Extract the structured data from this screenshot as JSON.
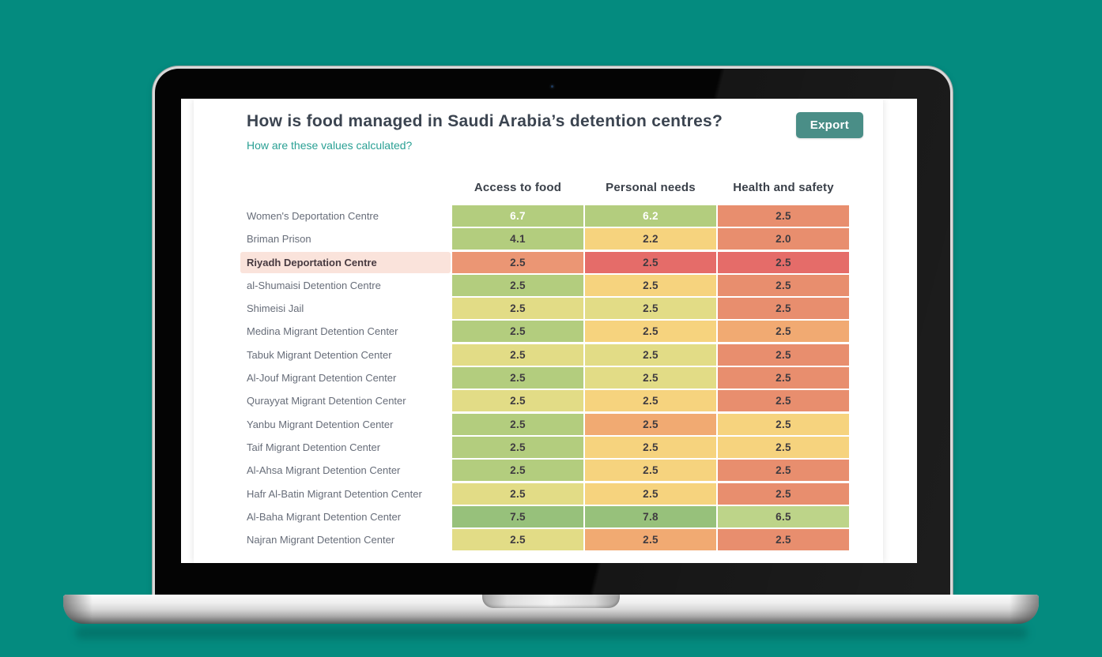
{
  "background_color": "#048b7f",
  "page": {
    "title": "How is food managed in Saudi Arabia’s detention centres?",
    "subtitle_link": "How are these values calculated?",
    "export_label": "Export"
  },
  "palette": {
    "green": "#b3cd7e",
    "green_dark": "#97c17b",
    "green_light": "#bdd489",
    "yellowgreen": "#e2dc86",
    "gold": "#f6d37e",
    "orange": "#f1aa72",
    "salmon": "#e88e6e",
    "salmon_orange": "#eb9674",
    "red": "#e56c69",
    "highlight_row_bg": "#fae3db",
    "accent_teal": "#2aa094",
    "export_bg": "#4a8e87",
    "title_color": "#3b4450",
    "label_color": "#676d79",
    "value_color": "#3f3b40"
  },
  "chart_data": {
    "type": "heatmap",
    "title": "How is food managed in Saudi Arabia’s detention centres?",
    "columns": [
      "Access to food",
      "Personal needs",
      "Health and safety"
    ],
    "color_scale": "red-yellow-green",
    "highlighted_row": "Riyadh Deportation Centre",
    "rows": [
      {
        "name": "Women's Deportation Centre",
        "values": [
          6.7,
          6.2,
          2.5
        ],
        "colors": [
          "green",
          "green",
          "salmon"
        ],
        "white_text": [
          0,
          1
        ]
      },
      {
        "name": "Briman Prison",
        "values": [
          4.1,
          2.2,
          2.0
        ],
        "colors": [
          "green",
          "gold",
          "salmon"
        ]
      },
      {
        "name": "Riyadh Deportation Centre",
        "values": [
          2.5,
          2.5,
          2.5
        ],
        "colors": [
          "salmon_orange",
          "red",
          "red"
        ],
        "highlighted": true
      },
      {
        "name": "al-Shumaisi Detention Centre",
        "values": [
          2.5,
          2.5,
          2.5
        ],
        "colors": [
          "green",
          "gold",
          "salmon"
        ]
      },
      {
        "name": "Shimeisi Jail",
        "values": [
          2.5,
          2.5,
          2.5
        ],
        "colors": [
          "yellowgreen",
          "yellowgreen",
          "salmon"
        ]
      },
      {
        "name": "Medina Migrant Detention Center",
        "values": [
          2.5,
          2.5,
          2.5
        ],
        "colors": [
          "green",
          "gold",
          "orange"
        ]
      },
      {
        "name": "Tabuk Migrant Detention Center",
        "values": [
          2.5,
          2.5,
          2.5
        ],
        "colors": [
          "yellowgreen",
          "yellowgreen",
          "salmon"
        ]
      },
      {
        "name": "Al-Jouf Migrant Detention Center",
        "values": [
          2.5,
          2.5,
          2.5
        ],
        "colors": [
          "green",
          "yellowgreen",
          "salmon"
        ]
      },
      {
        "name": "Qurayyat Migrant Detention Center",
        "values": [
          2.5,
          2.5,
          2.5
        ],
        "colors": [
          "yellowgreen",
          "gold",
          "salmon"
        ]
      },
      {
        "name": "Yanbu Migrant Detention Center",
        "values": [
          2.5,
          2.5,
          2.5
        ],
        "colors": [
          "green",
          "orange",
          "gold"
        ]
      },
      {
        "name": "Taif Migrant Detention Center",
        "values": [
          2.5,
          2.5,
          2.5
        ],
        "colors": [
          "green",
          "gold",
          "gold"
        ]
      },
      {
        "name": "Al-Ahsa Migrant Detention Center",
        "values": [
          2.5,
          2.5,
          2.5
        ],
        "colors": [
          "green",
          "gold",
          "salmon"
        ]
      },
      {
        "name": "Hafr Al-Batin Migrant Detention Center",
        "values": [
          2.5,
          2.5,
          2.5
        ],
        "colors": [
          "yellowgreen",
          "gold",
          "salmon"
        ]
      },
      {
        "name": "Al-Baha Migrant Detention Center",
        "values": [
          7.5,
          7.8,
          6.5
        ],
        "colors": [
          "green_dark",
          "green_dark",
          "green_light"
        ]
      },
      {
        "name": "Najran Migrant Detention Center",
        "values": [
          2.5,
          2.5,
          2.5
        ],
        "colors": [
          "yellowgreen",
          "orange",
          "salmon"
        ]
      }
    ]
  }
}
